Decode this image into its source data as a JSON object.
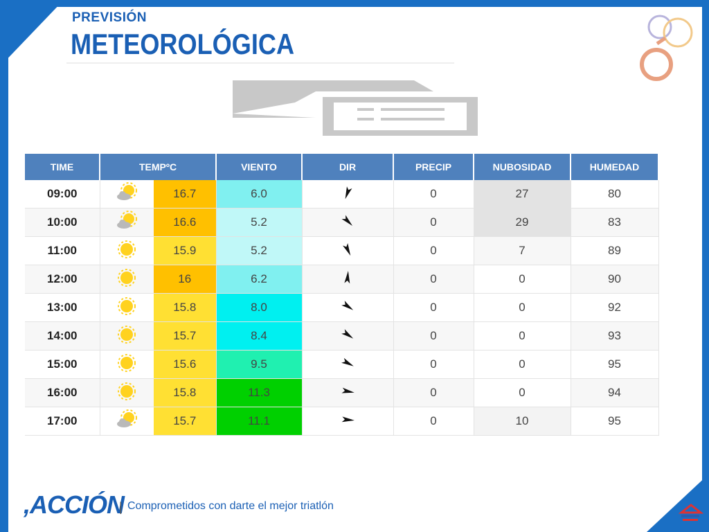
{
  "header": {
    "title_small": "PREVISIÓN",
    "title_big": "METEOROLÓGICA"
  },
  "table": {
    "columns": [
      "TIME",
      "TEMPºC",
      "VIENTO",
      "DIR",
      "PRECIP",
      "NUBOSIDAD",
      "HUMEDAD"
    ],
    "rows": [
      {
        "time": "09:00",
        "icon": "partly-cloudy-icon",
        "temp": "16.7",
        "wind": "6.0",
        "dir_deg": 200,
        "precip": "0",
        "cloud": "27",
        "humidity": "80",
        "temp_color": "#ffc000",
        "wind_color": "#80f0f0",
        "cloud_color": "#e3e3e3"
      },
      {
        "time": "10:00",
        "icon": "partly-cloudy-icon",
        "temp": "16.6",
        "wind": "5.2",
        "dir_deg": 135,
        "precip": "0",
        "cloud": "29",
        "humidity": "83",
        "temp_color": "#ffc000",
        "wind_color": "#c0f8f8",
        "cloud_color": "#e3e3e3"
      },
      {
        "time": "11:00",
        "icon": "sun-icon",
        "temp": "15.9",
        "wind": "5.2",
        "dir_deg": 155,
        "precip": "0",
        "cloud": "7",
        "humidity": "89",
        "temp_color": "#ffe033",
        "wind_color": "#c0f8f8",
        "cloud_color": "#f7f7f7"
      },
      {
        "time": "12:00",
        "icon": "sun-icon",
        "temp": "16",
        "wind": "6.2",
        "dir_deg": 5,
        "precip": "0",
        "cloud": "0",
        "humidity": "90",
        "temp_color": "#ffc000",
        "wind_color": "#80f0f0",
        "cloud_color": "#ffffff"
      },
      {
        "time": "13:00",
        "icon": "sun-icon",
        "temp": "15.8",
        "wind": "8.0",
        "dir_deg": 125,
        "precip": "0",
        "cloud": "0",
        "humidity": "92",
        "temp_color": "#ffe033",
        "wind_color": "#00f0f0",
        "cloud_color": "#ffffff"
      },
      {
        "time": "14:00",
        "icon": "sun-icon",
        "temp": "15.7",
        "wind": "8.4",
        "dir_deg": 125,
        "precip": "0",
        "cloud": "0",
        "humidity": "93",
        "temp_color": "#ffe033",
        "wind_color": "#00f0f0",
        "cloud_color": "#ffffff"
      },
      {
        "time": "15:00",
        "icon": "sun-icon",
        "temp": "15.6",
        "wind": "9.5",
        "dir_deg": 118,
        "precip": "0",
        "cloud": "0",
        "humidity": "95",
        "temp_color": "#ffe033",
        "wind_color": "#20f0b0",
        "cloud_color": "#ffffff"
      },
      {
        "time": "16:00",
        "icon": "sun-icon",
        "temp": "15.8",
        "wind": "11.3",
        "dir_deg": 100,
        "precip": "0",
        "cloud": "0",
        "humidity": "94",
        "temp_color": "#ffe033",
        "wind_color": "#00d000",
        "cloud_color": "#ffffff"
      },
      {
        "time": "17:00",
        "icon": "partly-cloudy-icon",
        "temp": "15.7",
        "wind": "11.1",
        "dir_deg": 95,
        "precip": "0",
        "cloud": "10",
        "humidity": "95",
        "temp_color": "#ffe033",
        "wind_color": "#00d000",
        "cloud_color": "#f3f3f3"
      }
    ]
  },
  "footer": {
    "brand": ",ACCIÓN",
    "separator": "|",
    "tagline": "Comprometidos con darte el mejor triatlón"
  },
  "colors": {
    "frame_blue": "#1a6fc4",
    "header_blue": "#4f81bd",
    "title_blue": "#1a5fb4"
  }
}
